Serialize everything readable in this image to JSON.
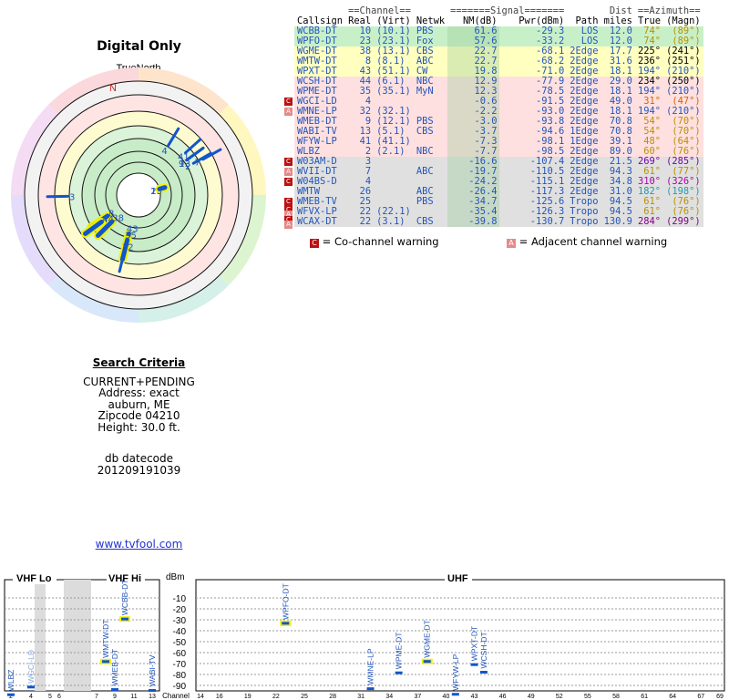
{
  "page": {
    "title": "Digital Only"
  },
  "polar": {
    "north_label": "TrueNorth",
    "n_marker": "N"
  },
  "search": {
    "heading": "Search Criteria",
    "mode": "CURRENT+PENDING",
    "address": "Address: exact",
    "city": "auburn, ME",
    "zip": "Zipcode 04210",
    "height": "Height: 30.0 ft.",
    "db_label": "db datecode",
    "db_code": "201209191039"
  },
  "link": {
    "text": "www.tvfool.com"
  },
  "table": {
    "group_headers": {
      "channel": "==Channel==",
      "signal": "=======Signal=======",
      "dist": "Dist",
      "azimuth": "==Azimuth=="
    },
    "headers": [
      "Callsign",
      "Real",
      "(Virt)",
      "Netwk",
      "NM(dB)",
      "Pwr(dBm)",
      "Path",
      "miles",
      "True",
      "(Magn)"
    ],
    "rows": [
      {
        "call": "WCBB-DT",
        "real": "10",
        "virt": "(10.1)",
        "net": "PBS",
        "nm": "61.6",
        "pwr": "-29.3",
        "path": "LOS",
        "miles": "12.0",
        "true": "74°",
        "magn": "(89°)",
        "bg": "#c8f0c8",
        "warn": "",
        "tcolor": "#b89000"
      },
      {
        "call": "WPFO-DT",
        "real": "23",
        "virt": "(23.1)",
        "net": "Fox",
        "nm": "57.6",
        "pwr": "-33.2",
        "path": "LOS",
        "miles": "12.0",
        "true": "74°",
        "magn": "(89°)",
        "bg": "#c8f0c8",
        "warn": "",
        "tcolor": "#b89000"
      },
      {
        "call": "WGME-DT",
        "real": "38",
        "virt": "(13.1)",
        "net": "CBS",
        "nm": "22.7",
        "pwr": "-68.1",
        "path": "2Edge",
        "miles": "17.7",
        "true": "225°",
        "magn": "(241°)",
        "bg": "#ffffc0",
        "warn": "",
        "tcolor": "#000000"
      },
      {
        "call": "WMTW-DT",
        "real": "8",
        "virt": "(8.1)",
        "net": "ABC",
        "nm": "22.7",
        "pwr": "-68.2",
        "path": "2Edge",
        "miles": "31.6",
        "true": "236°",
        "magn": "(251°)",
        "bg": "#ffffc0",
        "warn": "",
        "tcolor": "#000000"
      },
      {
        "call": "WPXT-DT",
        "real": "43",
        "virt": "(51.1)",
        "net": "CW",
        "nm": "19.8",
        "pwr": "-71.0",
        "path": "2Edge",
        "miles": "18.1",
        "true": "194°",
        "magn": "(210°)",
        "bg": "#ffffc0",
        "warn": "",
        "tcolor": "#2255bb"
      },
      {
        "call": "WCSH-DT",
        "real": "44",
        "virt": "(6.1)",
        "net": "NBC",
        "nm": "12.9",
        "pwr": "-77.9",
        "path": "2Edge",
        "miles": "29.0",
        "true": "234°",
        "magn": "(250°)",
        "bg": "#ffe0e0",
        "warn": "",
        "tcolor": "#000000"
      },
      {
        "call": "WPME-DT",
        "real": "35",
        "virt": "(35.1)",
        "net": "MyN",
        "nm": "12.3",
        "pwr": "-78.5",
        "path": "2Edge",
        "miles": "18.1",
        "true": "194°",
        "magn": "(210°)",
        "bg": "#ffe0e0",
        "warn": "",
        "tcolor": "#2255bb"
      },
      {
        "call": "WGCI-LD",
        "real": "4",
        "virt": "",
        "net": "",
        "nm": "-0.6",
        "pwr": "-91.5",
        "path": "2Edge",
        "miles": "49.0",
        "true": "31°",
        "magn": "(47°)",
        "bg": "#ffe0e0",
        "warn": "C",
        "tcolor": "#cc6600"
      },
      {
        "call": "WMNE-LP",
        "real": "32",
        "virt": "(32.1)",
        "net": "",
        "nm": "-2.2",
        "pwr": "-93.0",
        "path": "2Edge",
        "miles": "18.1",
        "true": "194°",
        "magn": "(210°)",
        "bg": "#ffe0e0",
        "warn": "A",
        "tcolor": "#2255bb"
      },
      {
        "call": "WMEB-DT",
        "real": "9",
        "virt": "(12.1)",
        "net": "PBS",
        "nm": "-3.0",
        "pwr": "-93.8",
        "path": "2Edge",
        "miles": "70.8",
        "true": "54°",
        "magn": "(70°)",
        "bg": "#ffe0e0",
        "warn": "",
        "tcolor": "#b89000"
      },
      {
        "call": "WABI-TV",
        "real": "13",
        "virt": "(5.1)",
        "net": "CBS",
        "nm": "-3.7",
        "pwr": "-94.6",
        "path": "1Edge",
        "miles": "70.8",
        "true": "54°",
        "magn": "(70°)",
        "bg": "#ffe0e0",
        "warn": "",
        "tcolor": "#b89000"
      },
      {
        "call": "WFYW-LP",
        "real": "41",
        "virt": "(41.1)",
        "net": "",
        "nm": "-7.3",
        "pwr": "-98.1",
        "path": "1Edge",
        "miles": "39.1",
        "true": "48°",
        "magn": "(64°)",
        "bg": "#ffe0e0",
        "warn": "",
        "tcolor": "#b89000"
      },
      {
        "call": "WLBZ",
        "real": "2",
        "virt": "(2.1)",
        "net": "NBC",
        "nm": "-7.7",
        "pwr": "-98.5",
        "path": "2Edge",
        "miles": "89.0",
        "true": "60°",
        "magn": "(76°)",
        "bg": "#ffe0e0",
        "warn": "",
        "tcolor": "#b89000"
      },
      {
        "call": "W03AM-D",
        "real": "3",
        "virt": "",
        "net": "",
        "nm": "-16.6",
        "pwr": "-107.4",
        "path": "2Edge",
        "miles": "21.5",
        "true": "269°",
        "magn": "(285°)",
        "bg": "#e0e0e0",
        "warn": "C",
        "tcolor": "#7700aa"
      },
      {
        "call": "WVII-DT",
        "real": "7",
        "virt": "",
        "net": "ABC",
        "nm": "-19.7",
        "pwr": "-110.5",
        "path": "2Edge",
        "miles": "94.3",
        "true": "61°",
        "magn": "(77°)",
        "bg": "#e0e0e0",
        "warn": "A",
        "tcolor": "#b89000"
      },
      {
        "call": "W04BS-D",
        "real": "4",
        "virt": "",
        "net": "",
        "nm": "-24.2",
        "pwr": "-115.1",
        "path": "2Edge",
        "miles": "34.8",
        "true": "310°",
        "magn": "(326°)",
        "bg": "#e0e0e0",
        "warn": "C",
        "tcolor": "#aa00aa"
      },
      {
        "call": "WMTW",
        "real": "26",
        "virt": "",
        "net": "ABC",
        "nm": "-26.4",
        "pwr": "-117.3",
        "path": "2Edge",
        "miles": "31.0",
        "true": "182°",
        "magn": "(198°)",
        "bg": "#e0e0e0",
        "warn": "",
        "tcolor": "#2299aa"
      },
      {
        "call": "WMEB-TV",
        "real": "25",
        "virt": "",
        "net": "PBS",
        "nm": "-34.7",
        "pwr": "-125.6",
        "path": "Tropo",
        "miles": "94.5",
        "true": "61°",
        "magn": "(76°)",
        "bg": "#e0e0e0",
        "warn": "C",
        "tcolor": "#b89000"
      },
      {
        "call": "WFVX-LP",
        "real": "22",
        "virt": "(22.1)",
        "net": "",
        "nm": "-35.4",
        "pwr": "-126.3",
        "path": "Tropo",
        "miles": "94.5",
        "true": "61°",
        "magn": "(76°)",
        "bg": "#e0e0e0",
        "warn": "CA",
        "tcolor": "#b89000"
      },
      {
        "call": "WCAX-DT",
        "real": "22",
        "virt": "(3.1)",
        "net": "CBS",
        "nm": "-39.8",
        "pwr": "-130.7",
        "path": "Tropo",
        "miles": "130.9",
        "true": "284°",
        "magn": "(299°)",
        "bg": "#e0e0e0",
        "warn": "CA",
        "tcolor": "#880088"
      }
    ]
  },
  "legend": {
    "co_icon": "C",
    "co_label": "= Co-channel warning",
    "adj_icon": "A",
    "adj_label": "= Adjacent channel warning"
  },
  "spectrum": {
    "vhf_lo": "VHF Lo",
    "vhf_hi": "VHF Hi",
    "uhf": "UHF",
    "unit": "dBm",
    "y_ticks": [
      -10,
      -20,
      -30,
      -40,
      -50,
      -60,
      -70,
      -80,
      -90
    ],
    "channel_label": "Channel",
    "vhflo_ticks": [
      2,
      4,
      5,
      6
    ],
    "vhfhi_ticks": [
      7,
      9,
      11,
      13
    ],
    "uhf_ticks": [
      14,
      16,
      19,
      22,
      25,
      28,
      31,
      34,
      37,
      40,
      43,
      46,
      49,
      52,
      55,
      58,
      61,
      64,
      67,
      69
    ],
    "signals": [
      {
        "label": "WLBZ",
        "ch": 2,
        "dbm": -98.5
      },
      {
        "label": "WGCI-LD",
        "ch": 4,
        "dbm": -91.5
      },
      {
        "label": "WMTW-DT",
        "ch": 8,
        "dbm": -68.2
      },
      {
        "label": "WMEB-DT",
        "ch": 9,
        "dbm": -93.8
      },
      {
        "label": "WCBB-DT",
        "ch": 10,
        "dbm": -29.3
      },
      {
        "label": "WABI-TV",
        "ch": 13,
        "dbm": -94.6
      },
      {
        "label": "WPFO-DT",
        "ch": 23,
        "dbm": -33.2
      },
      {
        "label": "WMNE-LP",
        "ch": 32,
        "dbm": -93.0
      },
      {
        "label": "WPME-DT",
        "ch": 35,
        "dbm": -78.5
      },
      {
        "label": "WGME-DT",
        "ch": 38,
        "dbm": -68.1
      },
      {
        "label": "WFYW-LP",
        "ch": 41,
        "dbm": -98.1
      },
      {
        "label": "WPXT-DT",
        "ch": 43,
        "dbm": -71.0
      },
      {
        "label": "WCSH-DT",
        "ch": 44,
        "dbm": -77.9
      }
    ]
  },
  "colors": {
    "link": "#2233cc",
    "bar": "#1155cc",
    "highlight": "#f0f000"
  }
}
